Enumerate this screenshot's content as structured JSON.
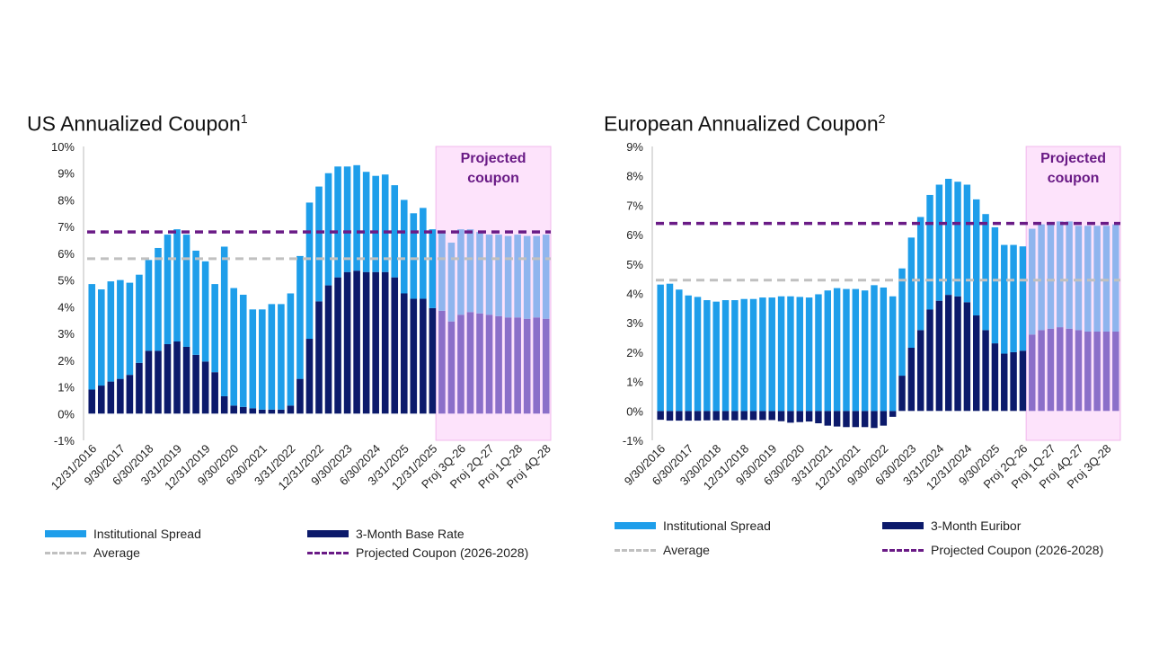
{
  "chart_data": [
    {
      "type": "bar",
      "stacked": true,
      "title": "US Annualized Coupon",
      "title_superscript": "1",
      "ylim": [
        -1,
        10
      ],
      "yticks": [
        -1,
        0,
        1,
        2,
        3,
        4,
        5,
        6,
        7,
        8,
        9,
        10
      ],
      "ytick_format": "percent",
      "grid": false,
      "legend_position": "bottom",
      "x_tick_labels": [
        "12/31/2016",
        "9/30/2017",
        "6/30/2018",
        "3/31/2019",
        "12/31/2019",
        "9/30/2020",
        "6/30/2021",
        "3/31/2022",
        "12/31/2022",
        "9/30/2023",
        "6/30/2024",
        "3/31/2025",
        "12/31/2025",
        "Proj 3Q-26",
        "Proj 2Q-27",
        "Proj 1Q-28",
        "Proj 4Q-28"
      ],
      "x_tick_indices": [
        0,
        3,
        6,
        9,
        12,
        15,
        18,
        21,
        24,
        27,
        30,
        33,
        36,
        39,
        42,
        45,
        48
      ],
      "projected_start_index": 37,
      "projected_label": "Projected coupon",
      "series": [
        {
          "name": "3-Month Base Rate",
          "color": "#0c1a6b",
          "projected_color": "#8b6fc9",
          "values": [
            0.9,
            1.05,
            1.2,
            1.3,
            1.45,
            1.9,
            2.35,
            2.35,
            2.6,
            2.7,
            2.5,
            2.2,
            1.95,
            1.55,
            0.65,
            0.3,
            0.25,
            0.2,
            0.15,
            0.15,
            0.15,
            0.3,
            1.3,
            2.8,
            4.2,
            4.8,
            5.1,
            5.3,
            5.35,
            5.3,
            5.3,
            5.3,
            5.1,
            4.5,
            4.3,
            4.3,
            3.95,
            3.85,
            3.45,
            3.7,
            3.8,
            3.75,
            3.7,
            3.65,
            3.6,
            3.6,
            3.55,
            3.6,
            3.55
          ]
        },
        {
          "name": "Institutional Spread",
          "color": "#1e9eea",
          "projected_color": "#8fb5ee",
          "values": [
            3.95,
            3.6,
            3.75,
            3.7,
            3.45,
            3.3,
            3.4,
            3.85,
            4.1,
            4.2,
            4.2,
            3.9,
            3.75,
            3.3,
            5.6,
            4.4,
            4.2,
            3.7,
            3.75,
            3.95,
            3.95,
            4.2,
            4.6,
            5.1,
            4.3,
            4.2,
            4.15,
            3.95,
            3.95,
            3.75,
            3.6,
            3.65,
            3.45,
            3.5,
            3.2,
            3.4,
            2.95,
            3.0,
            2.95,
            3.2,
            3.1,
            3.05,
            3.0,
            3.05,
            3.05,
            3.1,
            3.1,
            3.05,
            3.15
          ]
        }
      ],
      "reference_lines": [
        {
          "name": "Average",
          "value": 5.8,
          "color": "#c0c0c0",
          "style": "dashed"
        },
        {
          "name": "Projected Coupon (2026-2028)",
          "value": 6.8,
          "color": "#6a1b86",
          "style": "dashed"
        }
      ],
      "legend": [
        "Institutional Spread",
        "3-Month Base Rate",
        "Average",
        "Projected Coupon (2026-2028)"
      ]
    },
    {
      "type": "bar",
      "stacked": true,
      "title": "European Annualized Coupon",
      "title_superscript": "2",
      "ylim": [
        -1,
        9
      ],
      "yticks": [
        -1,
        0,
        1,
        2,
        3,
        4,
        5,
        6,
        7,
        8,
        9
      ],
      "ytick_format": "percent",
      "grid": false,
      "legend_position": "bottom",
      "x_tick_labels": [
        "9/30/2016",
        "6/30/2017",
        "3/30/2018",
        "12/31/2018",
        "9/30/2019",
        "6/30/2020",
        "3/31/2021",
        "12/31/2021",
        "9/30/2022",
        "6/30/2023",
        "3/31/2024",
        "12/31/2024",
        "9/30/2025",
        "Proj 2Q-26",
        "Proj 1Q-27",
        "Proj 4Q-27",
        "Proj 3Q-28"
      ],
      "x_tick_indices": [
        0,
        3,
        6,
        9,
        12,
        15,
        18,
        21,
        24,
        27,
        30,
        33,
        36,
        39,
        42,
        45,
        48
      ],
      "projected_start_index": 40,
      "projected_label": "Projected coupon",
      "series": [
        {
          "name": "3-Month Euribor",
          "color": "#0c1a6b",
          "projected_color": "#8b6fc9",
          "values": [
            -0.3,
            -0.33,
            -0.33,
            -0.33,
            -0.33,
            -0.32,
            -0.32,
            -0.32,
            -0.32,
            -0.31,
            -0.31,
            -0.31,
            -0.31,
            -0.35,
            -0.4,
            -0.38,
            -0.36,
            -0.42,
            -0.5,
            -0.53,
            -0.55,
            -0.55,
            -0.55,
            -0.58,
            -0.5,
            -0.2,
            1.2,
            2.15,
            2.75,
            3.45,
            3.75,
            3.95,
            3.9,
            3.7,
            3.25,
            2.75,
            2.3,
            1.95,
            2.0,
            2.05,
            2.6,
            2.75,
            2.8,
            2.85,
            2.8,
            2.75,
            2.7,
            2.7,
            2.7,
            2.7
          ]
        },
        {
          "name": "Institutional Spread",
          "color": "#1e9eea",
          "projected_color": "#8fb5ee",
          "values": [
            4.3,
            4.33,
            4.13,
            3.93,
            3.88,
            3.77,
            3.72,
            3.77,
            3.77,
            3.81,
            3.81,
            3.86,
            3.86,
            3.9,
            3.9,
            3.88,
            3.86,
            3.97,
            4.1,
            4.18,
            4.15,
            4.15,
            4.1,
            4.28,
            4.2,
            3.9,
            3.65,
            3.75,
            3.85,
            3.9,
            3.95,
            3.95,
            3.9,
            4.0,
            3.95,
            3.95,
            3.95,
            3.7,
            3.65,
            3.55,
            3.6,
            3.6,
            3.62,
            3.6,
            3.65,
            3.55,
            3.6,
            3.6,
            3.6,
            3.65
          ]
        }
      ],
      "reference_lines": [
        {
          "name": "Average",
          "value": 4.45,
          "color": "#c0c0c0",
          "style": "dashed"
        },
        {
          "name": "Projected Coupon (2026-2028)",
          "value": 6.38,
          "color": "#6a1b86",
          "style": "dashed"
        }
      ],
      "legend": [
        "Institutional Spread",
        "3-Month Euribor",
        "Average",
        "Projected Coupon (2026-2028)"
      ]
    }
  ]
}
